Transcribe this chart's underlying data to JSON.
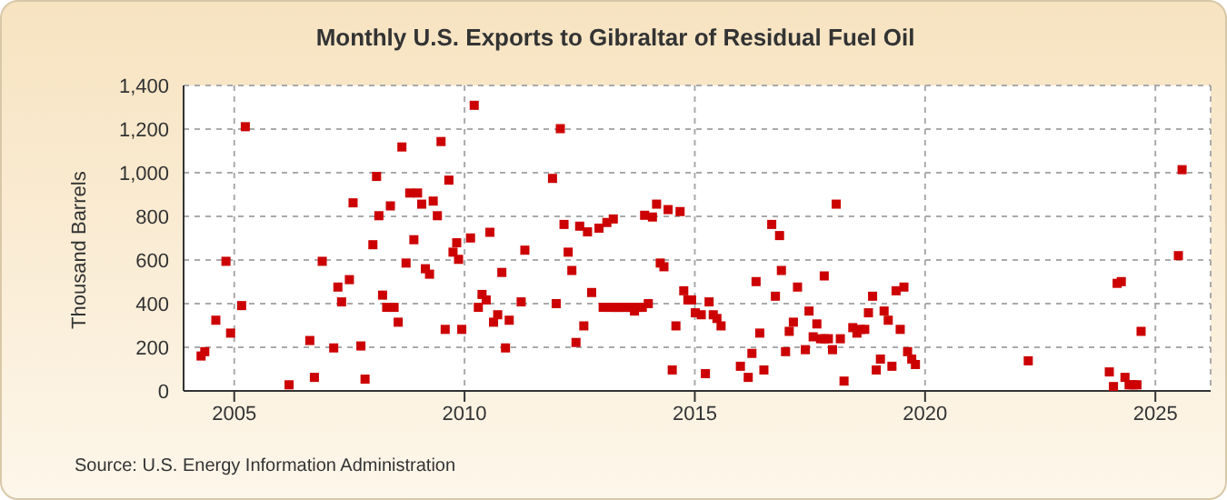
{
  "chart_data": {
    "type": "scatter",
    "title": "Monthly U.S. Exports to Gibraltar of Residual Fuel Oil",
    "ylabel": "Thousand Barrels",
    "annotations": [
      "Source: U.S. Energy Information Administration"
    ],
    "series": [
      {
        "color": "#cc0000",
        "x": [
          2004.28,
          2004.36,
          2004.6,
          2004.82,
          2004.92,
          2005.16,
          2005.24,
          2006.19,
          2006.64,
          2006.74,
          2006.91,
          2007.16,
          2007.25,
          2007.33,
          2007.5,
          2007.58,
          2007.75,
          2007.84,
          2008.01,
          2008.09,
          2008.14,
          2008.22,
          2008.31,
          2008.39,
          2008.47,
          2008.56,
          2008.64,
          2008.73,
          2008.81,
          2008.9,
          2008.98,
          2009.07,
          2009.15,
          2009.24,
          2009.32,
          2009.41,
          2009.49,
          2009.58,
          2009.66,
          2009.75,
          2009.83,
          2009.87,
          2009.94,
          2010.13,
          2010.21,
          2010.3,
          2010.38,
          2010.47,
          2010.55,
          2010.63,
          2010.72,
          2010.81,
          2010.89,
          2010.97,
          2011.23,
          2011.31,
          2011.91,
          2011.99,
          2012.08,
          2012.16,
          2012.25,
          2012.33,
          2012.42,
          2012.5,
          2012.59,
          2012.67,
          2012.76,
          2012.92,
          2013.01,
          2013.09,
          2013.17,
          2013.23,
          2013.26,
          2013.35,
          2013.43,
          2013.52,
          2013.6,
          2013.69,
          2013.77,
          2013.86,
          2013.91,
          2013.99,
          2014.08,
          2014.17,
          2014.25,
          2014.33,
          2014.42,
          2014.51,
          2014.59,
          2014.68,
          2014.76,
          2014.85,
          2014.93,
          2015.01,
          2015.14,
          2015.23,
          2015.31,
          2015.4,
          2015.48,
          2015.57,
          2015.99,
          2016.16,
          2016.24,
          2016.33,
          2016.41,
          2016.5,
          2016.67,
          2016.75,
          2016.84,
          2016.88,
          2016.97,
          2017.05,
          2017.14,
          2017.23,
          2017.4,
          2017.48,
          2017.57,
          2017.65,
          2017.73,
          2017.81,
          2017.82,
          2017.9,
          2017.99,
          2018.07,
          2018.16,
          2018.24,
          2018.43,
          2018.52,
          2018.6,
          2018.69,
          2018.77,
          2018.86,
          2018.94,
          2019.03,
          2019.11,
          2019.2,
          2019.28,
          2019.37,
          2019.46,
          2019.54,
          2019.62,
          2019.71,
          2019.79,
          2022.24,
          2024.0,
          2024.09,
          2024.17,
          2024.26,
          2024.34,
          2024.43,
          2024.52,
          2024.6,
          2024.69,
          2025.5,
          2025.58
        ],
        "values": [
          160,
          180,
          324,
          594,
          265,
          391,
          1211,
          28,
          231,
          62,
          594,
          197,
          476,
          408,
          510,
          862,
          206,
          54,
          670,
          983,
          803,
          439,
          383,
          848,
          383,
          315,
          1118,
          586,
          907,
          693,
          907,
          856,
          560,
          535,
          870,
          803,
          1143,
          282,
          966,
          636,
          679,
          603,
          282,
          701,
          1309,
          383,
          442,
          417,
          727,
          315,
          349,
          543,
          197,
          324,
          408,
          645,
          974,
          400,
          1202,
          763,
          636,
          552,
          222,
          755,
          298,
          729,
          451,
          746,
          383,
          772,
          383,
          788,
          383,
          383,
          383,
          383,
          383,
          366,
          383,
          383,
          805,
          400,
          797,
          856,
          586,
          569,
          831,
          96,
          298,
          822,
          459,
          417,
          417,
          358,
          349,
          79,
          408,
          349,
          332,
          298,
          113,
          62,
          172,
          501,
          265,
          96,
          763,
          434,
          712,
          552,
          180,
          273,
          315,
          476,
          189,
          366,
          248,
          307,
          239,
          527,
          239,
          239,
          189,
          856,
          239,
          45,
          290,
          265,
          282,
          282,
          358,
          434,
          96,
          146,
          366,
          324,
          113,
          459,
          282,
          476,
          180,
          146,
          121,
          138,
          87,
          20,
          493,
          501,
          62,
          28,
          28,
          28,
          273,
          620,
          1014
        ]
      }
    ],
    "xlim": [
      2003.9,
      2026.2
    ],
    "xticks": [
      2005,
      2010,
      2015,
      2020,
      2025
    ],
    "ylim": [
      0,
      1400
    ],
    "yticks": [
      0,
      200,
      400,
      600,
      800,
      {
        "value": 1000,
        "label": "1,000"
      },
      {
        "value": 1200,
        "label": "1,200"
      },
      {
        "value": 1400,
        "label": "1,400"
      }
    ],
    "grid": true,
    "marker": "square"
  }
}
